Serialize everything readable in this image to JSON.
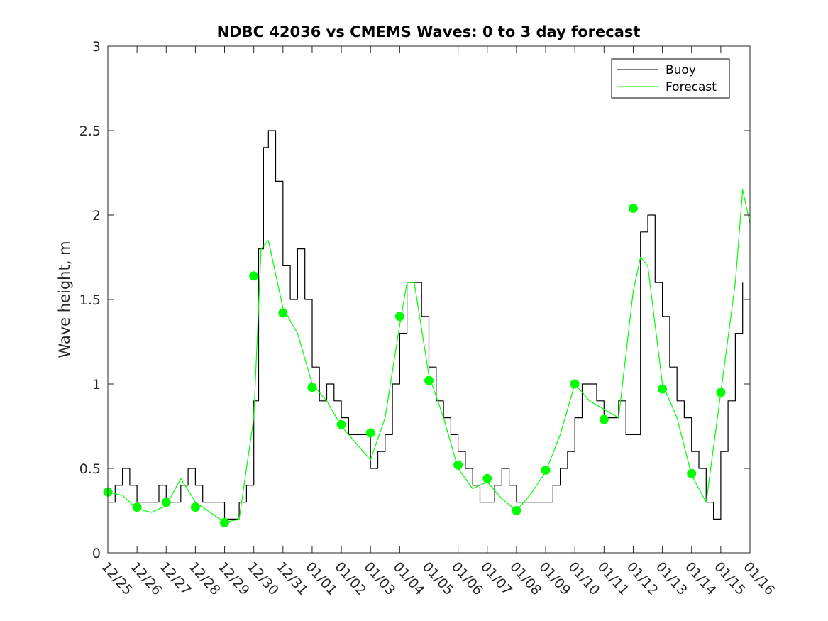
{
  "chart_data": {
    "type": "line",
    "title": "NDBC 42036 vs CMEMS Waves: 0 to 3 day forecast",
    "xlabel": "",
    "ylabel": "Wave height, m",
    "x_ticks": [
      "12/25",
      "12/26",
      "12/27",
      "12/28",
      "12/29",
      "12/30",
      "12/31",
      "01/01",
      "01/02",
      "01/03",
      "01/04",
      "01/05",
      "01/06",
      "01/07",
      "01/08",
      "01/09",
      "01/10",
      "01/11",
      "01/12",
      "01/13",
      "01/14",
      "01/15",
      "01/16"
    ],
    "y_ticks": [
      "0",
      "0.5",
      "1",
      "1.5",
      "2",
      "2.5",
      "3"
    ],
    "ylim": [
      0,
      3
    ],
    "xlim": [
      "12/25",
      "01/16"
    ],
    "grid": false,
    "legend": {
      "placement": "top-right",
      "entries": [
        "Buoy",
        "Forecast"
      ]
    },
    "colors": {
      "buoy": "#000000",
      "forecast": "#00ff00",
      "analysis_markers": "#00ff00"
    },
    "series": [
      {
        "name": "Buoy",
        "x": [
          "12/25 00:00",
          "12/25 06:00",
          "12/25 12:00",
          "12/25 18:00",
          "12/26 00:00",
          "12/26 06:00",
          "12/26 12:00",
          "12/26 18:00",
          "12/27 00:00",
          "12/27 06:00",
          "12/27 12:00",
          "12/27 18:00",
          "12/28 00:00",
          "12/28 06:00",
          "12/28 12:00",
          "12/28 18:00",
          "12/29 00:00",
          "12/29 06:00",
          "12/29 12:00",
          "12/29 18:00",
          "12/30 00:00",
          "12/30 04:00",
          "12/30 08:00",
          "12/30 12:00",
          "12/30 18:00",
          "12/31 00:00",
          "12/31 06:00",
          "12/31 12:00",
          "12/31 18:00",
          "01/01 00:00",
          "01/01 06:00",
          "01/01 12:00",
          "01/01 18:00",
          "01/02 00:00",
          "01/02 06:00",
          "01/02 12:00",
          "01/02 18:00",
          "01/03 00:00",
          "01/03 06:00",
          "01/03 12:00",
          "01/03 18:00",
          "01/04 00:00",
          "01/04 06:00",
          "01/04 12:00",
          "01/04 18:00",
          "01/05 00:00",
          "01/05 06:00",
          "01/05 12:00",
          "01/05 18:00",
          "01/06 00:00",
          "01/06 06:00",
          "01/06 12:00",
          "01/06 18:00",
          "01/07 00:00",
          "01/07 06:00",
          "01/07 12:00",
          "01/07 18:00",
          "01/08 00:00",
          "01/08 06:00",
          "01/08 12:00",
          "01/08 18:00",
          "01/09 00:00",
          "01/09 06:00",
          "01/09 12:00",
          "01/09 18:00",
          "01/10 00:00",
          "01/10 06:00",
          "01/10 12:00",
          "01/10 18:00",
          "01/11 00:00",
          "01/11 06:00",
          "01/11 12:00",
          "01/11 18:00",
          "01/12 00:00",
          "01/12 06:00",
          "01/12 12:00",
          "01/12 18:00",
          "01/13 00:00",
          "01/13 06:00",
          "01/13 12:00",
          "01/13 18:00",
          "01/14 00:00",
          "01/14 06:00",
          "01/14 12:00",
          "01/14 18:00",
          "01/15 00:00",
          "01/15 06:00",
          "01/15 12:00",
          "01/15 18:00"
        ],
        "y": [
          0.3,
          0.4,
          0.5,
          0.4,
          0.3,
          0.3,
          0.3,
          0.4,
          0.3,
          0.3,
          0.4,
          0.5,
          0.4,
          0.3,
          0.3,
          0.3,
          0.2,
          0.2,
          0.3,
          0.4,
          0.9,
          1.8,
          2.4,
          2.5,
          2.2,
          1.7,
          1.5,
          1.8,
          1.5,
          1.1,
          0.9,
          1.0,
          0.9,
          0.8,
          0.7,
          0.7,
          0.7,
          0.5,
          0.6,
          0.7,
          1.0,
          1.3,
          1.6,
          1.6,
          1.4,
          1.1,
          0.9,
          0.8,
          0.7,
          0.6,
          0.5,
          0.4,
          0.3,
          0.3,
          0.4,
          0.5,
          0.4,
          0.3,
          0.3,
          0.3,
          0.3,
          0.3,
          0.4,
          0.5,
          0.6,
          0.8,
          1.0,
          1.0,
          0.9,
          0.8,
          0.8,
          0.9,
          0.7,
          0.7,
          1.9,
          2.0,
          1.6,
          1.4,
          1.1,
          0.9,
          0.8,
          0.6,
          0.5,
          0.3,
          0.2,
          0.6,
          0.9,
          1.3,
          1.6
        ]
      },
      {
        "name": "Forecast",
        "x": [
          "12/25 00:00",
          "12/25 12:00",
          "12/26 00:00",
          "12/26 12:00",
          "12/27 00:00",
          "12/27 12:00",
          "12/28 00:00",
          "12/28 12:00",
          "12/29 00:00",
          "12/29 12:00",
          "12/30 00:00",
          "12/30 06:00",
          "12/30 12:00",
          "12/31 00:00",
          "12/31 12:00",
          "01/01 00:00",
          "01/01 12:00",
          "01/02 00:00",
          "01/02 12:00",
          "01/03 00:00",
          "01/03 12:00",
          "01/04 00:00",
          "01/04 06:00",
          "01/04 12:00",
          "01/05 00:00",
          "01/05 12:00",
          "01/06 00:00",
          "01/06 12:00",
          "01/07 00:00",
          "01/07 12:00",
          "01/08 00:00",
          "01/08 12:00",
          "01/09 00:00",
          "01/09 12:00",
          "01/10 00:00",
          "01/10 12:00",
          "01/11 00:00",
          "01/11 12:00",
          "01/12 00:00",
          "01/12 06:00",
          "01/12 12:00",
          "01/13 00:00",
          "01/13 12:00",
          "01/14 00:00",
          "01/14 12:00",
          "01/15 00:00",
          "01/15 12:00",
          "01/15 18:00",
          "01/16 00:00"
        ],
        "y": [
          0.36,
          0.34,
          0.26,
          0.24,
          0.28,
          0.44,
          0.3,
          0.24,
          0.18,
          0.2,
          0.8,
          1.8,
          1.85,
          1.45,
          1.3,
          1.0,
          0.9,
          0.75,
          0.65,
          0.55,
          0.8,
          1.35,
          1.6,
          1.6,
          1.05,
          0.8,
          0.5,
          0.38,
          0.42,
          0.32,
          0.25,
          0.35,
          0.48,
          0.7,
          1.0,
          0.9,
          0.85,
          0.8,
          1.55,
          1.75,
          1.7,
          1.0,
          0.8,
          0.46,
          0.3,
          0.95,
          1.6,
          2.15,
          1.95
        ]
      },
      {
        "name": "",
        "type": "scatter",
        "x": [
          "12/25",
          "12/26",
          "12/27",
          "12/28",
          "12/29",
          "12/30",
          "12/31",
          "01/01",
          "01/02",
          "01/03",
          "01/04",
          "01/05",
          "01/06",
          "01/07",
          "01/08",
          "01/09",
          "01/10",
          "01/11",
          "01/12",
          "01/13",
          "01/14",
          "01/15"
        ],
        "y": [
          0.36,
          0.27,
          0.3,
          0.27,
          0.18,
          1.64,
          1.42,
          0.98,
          0.76,
          0.71,
          1.4,
          1.02,
          0.52,
          0.44,
          0.25,
          0.49,
          1.0,
          0.79,
          2.04,
          0.97,
          0.47,
          0.95
        ]
      }
    ]
  }
}
